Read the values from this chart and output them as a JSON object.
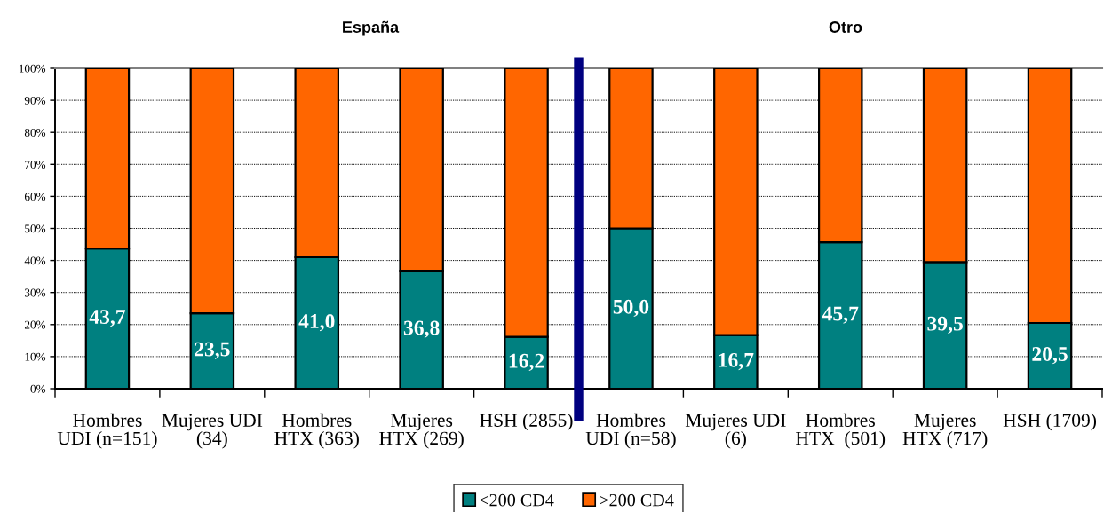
{
  "chart_data": [
    {
      "type": "bar",
      "stacked": true,
      "title": "España",
      "categories": [
        "Hombres\nUDI (n=151)",
        "Mujeres UDI\n(34)",
        "Hombres\nHTX (363)",
        "Mujeres\nHTX (269)",
        "HSH (2855)"
      ],
      "series": [
        {
          "name": "<200 CD4",
          "color": "#008080",
          "values": [
            43.7,
            23.5,
            41.0,
            36.8,
            16.2
          ],
          "value_labels": [
            "43,7",
            "23,5",
            "41,0",
            "36,8",
            "16,2"
          ]
        },
        {
          "name": ">200 CD4",
          "color": "#ff6600",
          "values": [
            56.3,
            76.5,
            59.0,
            63.2,
            83.8
          ]
        }
      ],
      "ylim": [
        0,
        100
      ],
      "yticks": [
        {
          "value": 0,
          "label": "0%"
        },
        {
          "value": 10,
          "label": "10%"
        },
        {
          "value": 20,
          "label": "20%"
        },
        {
          "value": 30,
          "label": "30%"
        },
        {
          "value": 40,
          "label": "40%"
        },
        {
          "value": 50,
          "label": "50%"
        },
        {
          "value": 60,
          "label": "60%"
        },
        {
          "value": 70,
          "label": "70%"
        },
        {
          "value": 80,
          "label": "80%"
        },
        {
          "value": 90,
          "label": "90%"
        },
        {
          "value": 100,
          "label": "100%"
        }
      ],
      "grid": "y",
      "legend": "bottom"
    },
    {
      "type": "bar",
      "stacked": true,
      "title": "Otro",
      "categories": [
        "Hombres\nUDI (n=58)",
        "Mujeres UDI\n(6)",
        "Hombres\nHTX  (501)",
        "Mujeres\nHTX (717)",
        "HSH (1709)"
      ],
      "series": [
        {
          "color": "#008080",
          "values": [
            50.0,
            16.7,
            45.7,
            39.5,
            20.5
          ],
          "value_labels": [
            "50,0",
            "16,7",
            "45,7",
            "39,5",
            "20,5"
          ]
        },
        {
          "color": "#ff6600",
          "values": [
            50.0,
            83.3,
            54.3,
            60.5,
            79.5
          ]
        }
      ],
      "ylim": [
        0,
        100
      ],
      "yticks": [
        0,
        10,
        20,
        30,
        40,
        50,
        60,
        70,
        80,
        90,
        100
      ],
      "grid": "y",
      "tick_labels": "x"
    }
  ]
}
